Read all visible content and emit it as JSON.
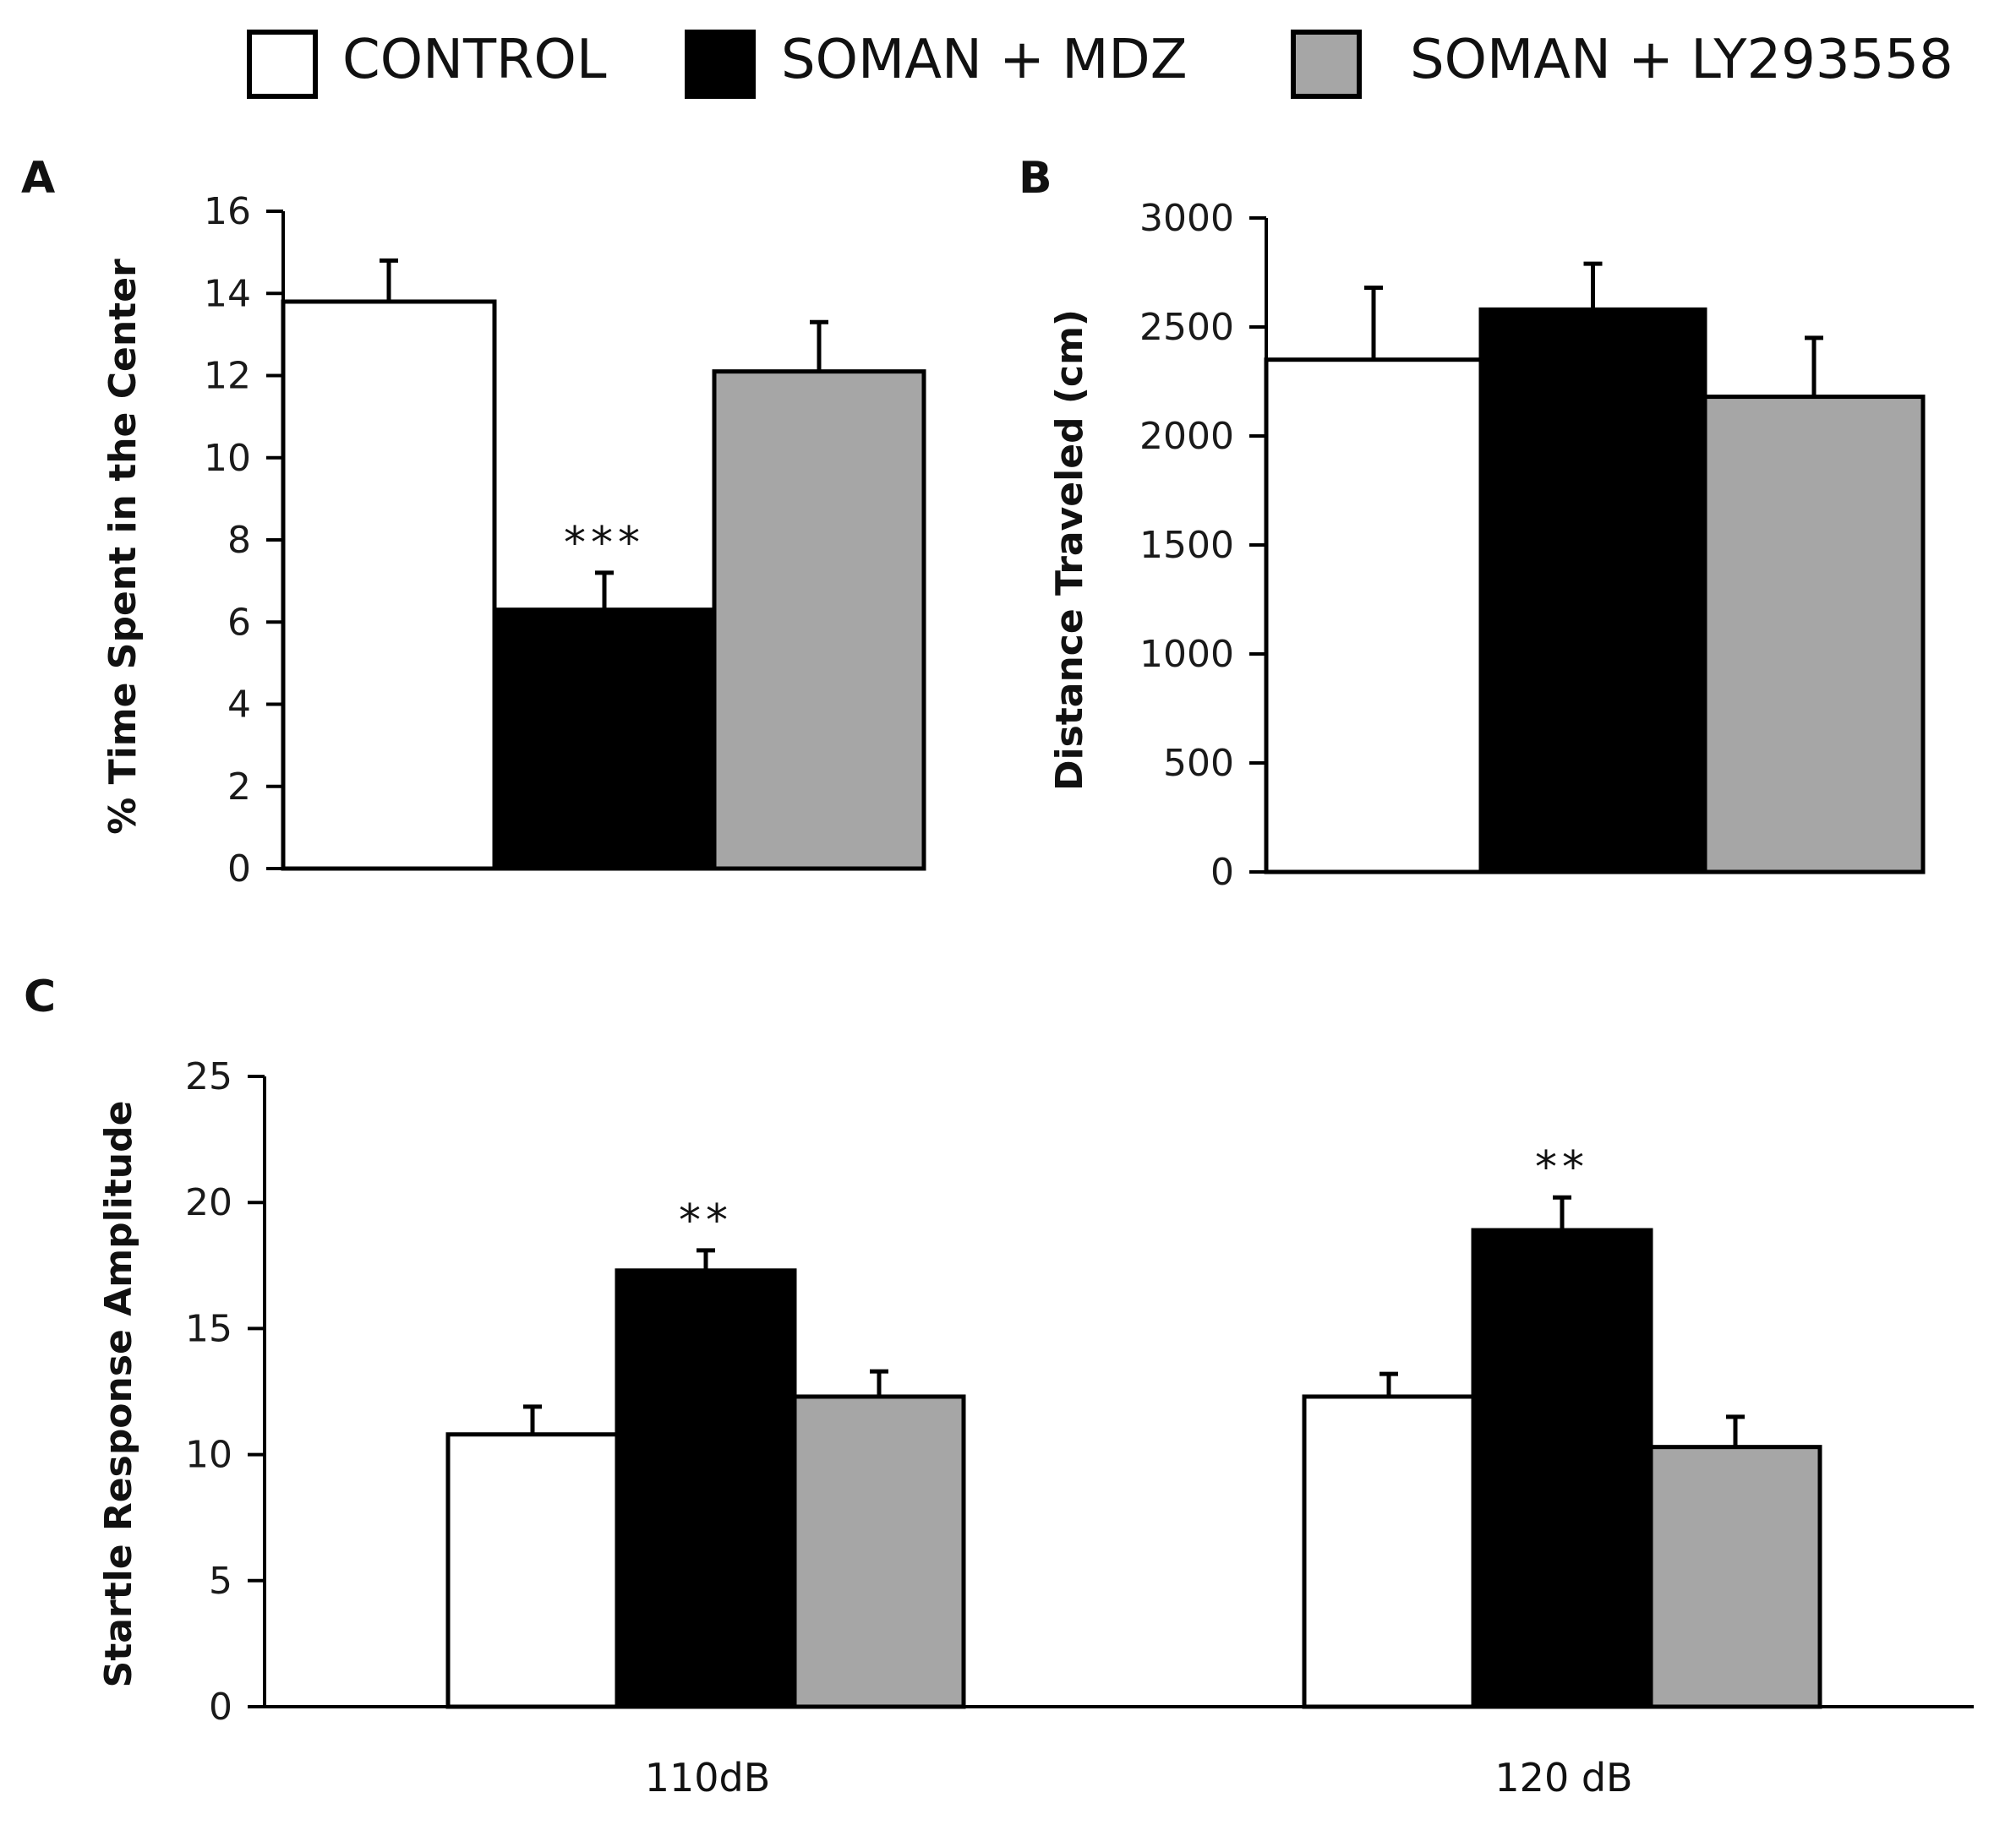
{
  "legend": {
    "items": [
      {
        "label": "CONTROL",
        "color": "#ffffff"
      },
      {
        "label": "SOMAN + MDZ",
        "color": "#000000"
      },
      {
        "label": "SOMAN + LY293558",
        "color": "#a6a6a6"
      }
    ]
  },
  "chart_data": [
    {
      "panel": "A",
      "type": "bar",
      "ylabel": "% Time Spent in the Center",
      "ylim": [
        0,
        16
      ],
      "yticks": [
        0,
        2,
        4,
        6,
        8,
        10,
        12,
        14,
        16
      ],
      "categories": [
        ""
      ],
      "series": [
        {
          "name": "CONTROL",
          "values": [
            13.8
          ],
          "errors": [
            1.0
          ],
          "significance": [
            ""
          ]
        },
        {
          "name": "SOMAN + MDZ",
          "values": [
            6.3
          ],
          "errors": [
            0.9
          ],
          "significance": [
            "***"
          ]
        },
        {
          "name": "SOMAN + LY293558",
          "values": [
            12.1
          ],
          "errors": [
            1.2
          ],
          "significance": [
            ""
          ]
        }
      ]
    },
    {
      "panel": "B",
      "type": "bar",
      "ylabel": "Distance Traveled (cm)",
      "ylim": [
        0,
        3000
      ],
      "yticks": [
        0,
        500,
        1000,
        1500,
        2000,
        2500,
        3000
      ],
      "categories": [
        ""
      ],
      "series": [
        {
          "name": "CONTROL",
          "values": [
            2350
          ],
          "errors": [
            330
          ],
          "significance": [
            ""
          ]
        },
        {
          "name": "SOMAN + MDZ",
          "values": [
            2580
          ],
          "errors": [
            210
          ],
          "significance": [
            ""
          ]
        },
        {
          "name": "SOMAN + LY293558",
          "values": [
            2180
          ],
          "errors": [
            270
          ],
          "significance": [
            ""
          ]
        }
      ]
    },
    {
      "panel": "C",
      "type": "bar",
      "ylabel": "Startle Response Amplitude",
      "ylim": [
        0,
        25
      ],
      "yticks": [
        0,
        5,
        10,
        15,
        20,
        25
      ],
      "categories": [
        "110dB",
        "120 dB"
      ],
      "series": [
        {
          "name": "CONTROL",
          "values": [
            10.8,
            12.3
          ],
          "errors": [
            1.1,
            0.9
          ],
          "significance": [
            "",
            ""
          ]
        },
        {
          "name": "SOMAN + MDZ",
          "values": [
            17.3,
            18.9
          ],
          "errors": [
            0.8,
            1.3
          ],
          "significance": [
            "**",
            "**"
          ]
        },
        {
          "name": "SOMAN + LY293558",
          "values": [
            12.3,
            10.3
          ],
          "errors": [
            1.0,
            1.2
          ],
          "significance": [
            "",
            ""
          ]
        }
      ]
    }
  ]
}
